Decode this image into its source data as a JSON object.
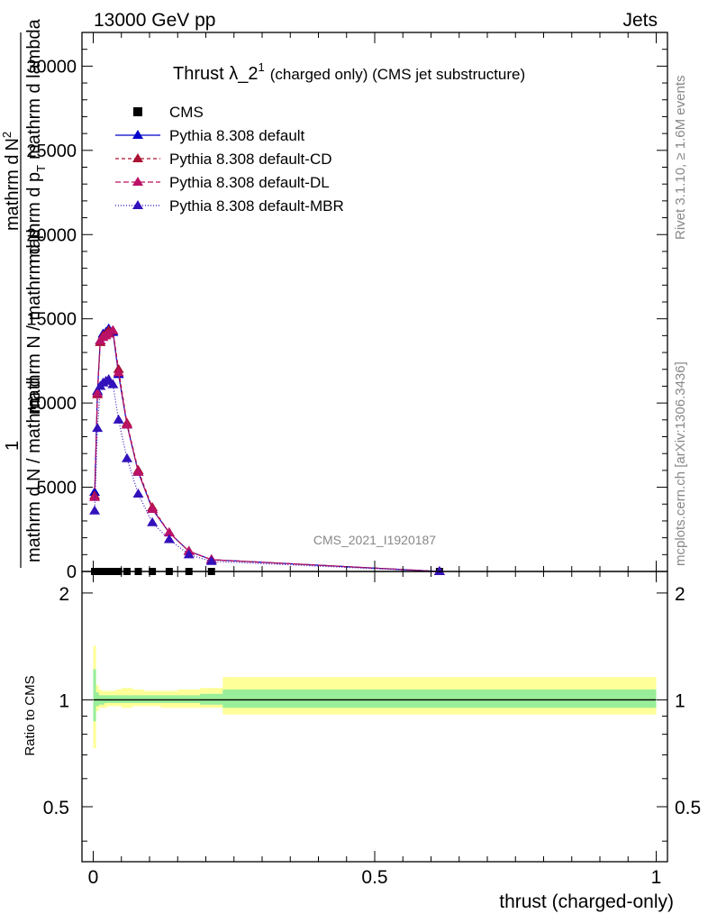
{
  "header": {
    "left": "13000 GeV pp",
    "right": "Jets"
  },
  "side": {
    "rivet": "Rivet 3.1.10, ≥ 1.6M events",
    "mcplots": "mcplots.cern.ch [arXiv:1306.3436]"
  },
  "chart_data": [
    {
      "type": "line",
      "title_main": "Thrust λ_2",
      "title_sup": "1",
      "title_rest": "(charged only) (CMS jet substructure)",
      "watermark": "CMS_2021_I1920187",
      "ylabel_num_a": "1",
      "ylabel_num_b": "mathrm d",
      "ylabel_num_c": "N",
      "ylabel_num_sup": "2",
      "ylabel_den": "mathrm d p",
      "ylabel_den_sub": "T",
      "ylabel_den_b": "mathrm d lambda",
      "ylabel_frac_num": "1",
      "ylabel_frac_den": "mathrm N / mathrm d p",
      "ylabel_frac_tail": "mathrm d N / mathrm d",
      "ylim": [
        0,
        32000
      ],
      "xlim": [
        -0.02,
        1.02
      ],
      "ytick_labels": [
        "0",
        "5000",
        "10000",
        "15000",
        "20000",
        "25000",
        "30000"
      ],
      "ytick_values": [
        0,
        5000,
        10000,
        15000,
        20000,
        25000,
        30000
      ],
      "legend_position": "top-left",
      "series": [
        {
          "name": "CMS",
          "color": "#000000",
          "marker": "square",
          "x": [
            0.0025,
            0.0075,
            0.0125,
            0.0175,
            0.0225,
            0.0275,
            0.035,
            0.045,
            0.06,
            0.08,
            0.105,
            0.135,
            0.17,
            0.21,
            0.615
          ],
          "values": [
            0,
            0,
            0,
            0,
            0,
            0,
            0,
            0,
            0,
            0,
            0,
            0,
            0,
            0,
            0
          ]
        },
        {
          "name": "Pythia 8.308 default",
          "color": "#0000cc",
          "marker": "triangle",
          "dash": "",
          "x": [
            0.0025,
            0.0075,
            0.0125,
            0.0175,
            0.0225,
            0.0275,
            0.035,
            0.045,
            0.06,
            0.08,
            0.105,
            0.135,
            0.17,
            0.21,
            0.615
          ],
          "values": [
            4700,
            10700,
            13700,
            14100,
            14200,
            14400,
            14200,
            11700,
            8700,
            5900,
            3700,
            2300,
            1200,
            700,
            0
          ]
        },
        {
          "name": "Pythia 8.308 default-CD",
          "color": "#aa1133",
          "marker": "triangle",
          "dash": "4,3",
          "x": [
            0.0025,
            0.0075,
            0.0125,
            0.0175,
            0.0225,
            0.0275,
            0.035,
            0.045,
            0.06,
            0.08,
            0.105,
            0.135,
            0.17,
            0.21,
            0.615
          ],
          "values": [
            4500,
            10500,
            13600,
            14000,
            14100,
            14300,
            14300,
            12000,
            8800,
            6000,
            3800,
            2300,
            1200,
            700,
            0
          ]
        },
        {
          "name": "Pythia 8.308 default-DL",
          "color": "#bb1166",
          "marker": "triangle",
          "dash": "6,3",
          "x": [
            0.0025,
            0.0075,
            0.0125,
            0.0175,
            0.0225,
            0.0275,
            0.035,
            0.045,
            0.06,
            0.08,
            0.105,
            0.135,
            0.17,
            0.21,
            0.615
          ],
          "values": [
            4400,
            10600,
            13700,
            13900,
            14000,
            14100,
            14300,
            11800,
            8700,
            5900,
            3700,
            2300,
            1200,
            700,
            0
          ]
        },
        {
          "name": "Pythia 8.308 default-MBR",
          "color": "#3311bb",
          "marker": "triangle",
          "dash": "1,2",
          "x": [
            0.0025,
            0.0075,
            0.0125,
            0.0175,
            0.0225,
            0.0275,
            0.035,
            0.045,
            0.06,
            0.08,
            0.105,
            0.135,
            0.17,
            0.21,
            0.615
          ],
          "values": [
            3600,
            8500,
            11000,
            11200,
            11300,
            11400,
            11100,
            9000,
            6700,
            4600,
            2900,
            1900,
            1000,
            600,
            0
          ]
        }
      ]
    },
    {
      "type": "area",
      "ylabel": "Ratio to CMS",
      "xlabel": "thrust (charged-only)",
      "xlim": [
        -0.02,
        1.02
      ],
      "ylim": [
        0.35,
        2.3
      ],
      "ytick_labels": [
        "0.5",
        "1",
        "2"
      ],
      "ytick_values": [
        0.5,
        1,
        2
      ],
      "xtick_labels": [
        "0",
        "0.5",
        "1"
      ],
      "xtick_values": [
        0,
        0.5,
        1
      ],
      "reference_line": 1,
      "bands": {
        "edges": [
          0,
          0.005,
          0.01,
          0.015,
          0.02,
          0.025,
          0.03,
          0.04,
          0.05,
          0.07,
          0.09,
          0.12,
          0.15,
          0.19,
          0.23,
          1.0
        ],
        "green_lo": [
          0.87,
          0.96,
          0.97,
          0.97,
          0.98,
          0.98,
          0.98,
          0.98,
          0.98,
          0.98,
          0.98,
          0.98,
          0.98,
          0.97,
          0.95
        ],
        "green_hi": [
          1.22,
          1.05,
          1.03,
          1.03,
          1.03,
          1.03,
          1.03,
          1.03,
          1.03,
          1.03,
          1.03,
          1.03,
          1.03,
          1.04,
          1.07
        ],
        "yellow_lo": [
          0.73,
          0.93,
          0.95,
          0.95,
          0.95,
          0.96,
          0.96,
          0.96,
          0.95,
          0.96,
          0.96,
          0.95,
          0.95,
          0.95,
          0.91
        ],
        "yellow_hi": [
          1.42,
          1.1,
          1.07,
          1.06,
          1.06,
          1.06,
          1.06,
          1.07,
          1.08,
          1.07,
          1.06,
          1.06,
          1.07,
          1.08,
          1.16
        ],
        "green_color": "#99ee99",
        "yellow_color": "#ffff99"
      }
    }
  ]
}
